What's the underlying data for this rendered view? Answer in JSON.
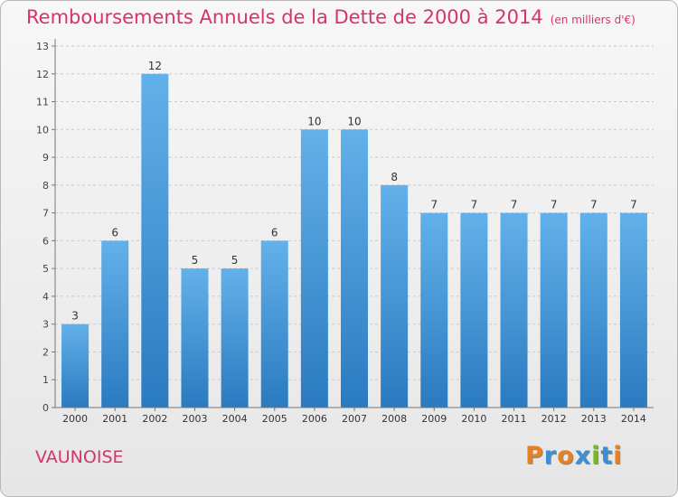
{
  "title": "Remboursements Annuels de la Dette de 2000 à 2014",
  "subtitle": "(en milliers d'€)",
  "location": "VAUNOISE",
  "logo": {
    "letters": [
      "P",
      "r",
      "o",
      "x",
      "i",
      "t",
      "i"
    ],
    "colors": [
      "#e87f20",
      "#3a8fd6",
      "#e87f20",
      "#3a8fd6",
      "#76b82a",
      "#3a8fd6",
      "#e87f20"
    ]
  },
  "colors": {
    "bar_light": "#63b1ea",
    "bar_dark": "#2a7ac0",
    "title": "#d6336b"
  },
  "chart_data": {
    "type": "bar",
    "categories": [
      "2000",
      "2001",
      "2002",
      "2003",
      "2004",
      "2005",
      "2006",
      "2007",
      "2008",
      "2009",
      "2010",
      "2011",
      "2012",
      "2013",
      "2014"
    ],
    "values": [
      3,
      6,
      12,
      5,
      5,
      6,
      10,
      10,
      8,
      7,
      7,
      7,
      7,
      7,
      7
    ],
    "data_labels": [
      "3",
      "6",
      "12",
      "5",
      "5",
      "6",
      "10",
      "10",
      "8",
      "7",
      "7",
      "7",
      "7",
      "7",
      "7"
    ],
    "yticks": [
      "0",
      "1",
      "2",
      "3",
      "4",
      "5",
      "6",
      "7",
      "8",
      "9",
      "10",
      "11",
      "12",
      "13"
    ],
    "ylim": [
      0,
      13
    ],
    "grid": true,
    "legend": "none"
  }
}
